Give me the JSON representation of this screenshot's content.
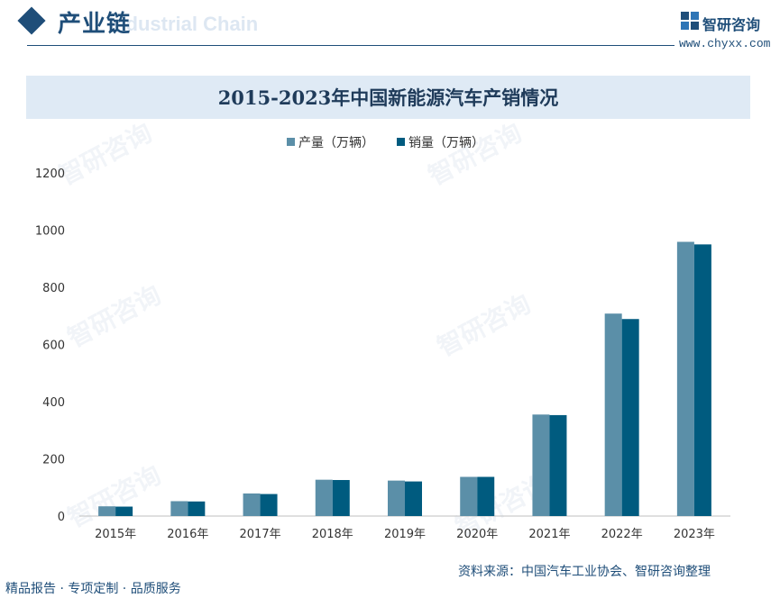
{
  "header": {
    "title": "产业链",
    "background_text": "Industrial Chain",
    "logo_text": "智研咨询",
    "logo_url": "www.chyxx.com"
  },
  "watermark": {
    "text": "智研咨询"
  },
  "legend": {
    "production": "产量（万辆）",
    "sales": "销量（万辆）"
  },
  "footer": {
    "left": "精品报告 · 专项定制 · 品质服务",
    "source": "资料来源：中国汽车工业协会、智研咨询整理"
  },
  "colors": {
    "production": "#5b8fa8",
    "sales": "#005b7f",
    "brand": "#1f4e79"
  },
  "chart_data": {
    "type": "bar",
    "title": "2015-2023年中国新能源汽车产销情况",
    "categories": [
      "2015年",
      "2016年",
      "2017年",
      "2018年",
      "2019年",
      "2020年",
      "2021年",
      "2022年",
      "2023年"
    ],
    "series": [
      {
        "name": "产量（万辆）",
        "values": [
          34,
          52,
          79,
          127,
          124,
          137,
          355,
          708,
          959
        ]
      },
      {
        "name": "销量（万辆）",
        "values": [
          33,
          51,
          77,
          126,
          121,
          137,
          353,
          689,
          950
        ]
      }
    ],
    "xlabel": "",
    "ylabel": "",
    "ylim": [
      0,
      1200
    ],
    "yticks": [
      0,
      200,
      400,
      600,
      800,
      1000,
      1200
    ],
    "grid": false,
    "legend_position": "top-center"
  }
}
